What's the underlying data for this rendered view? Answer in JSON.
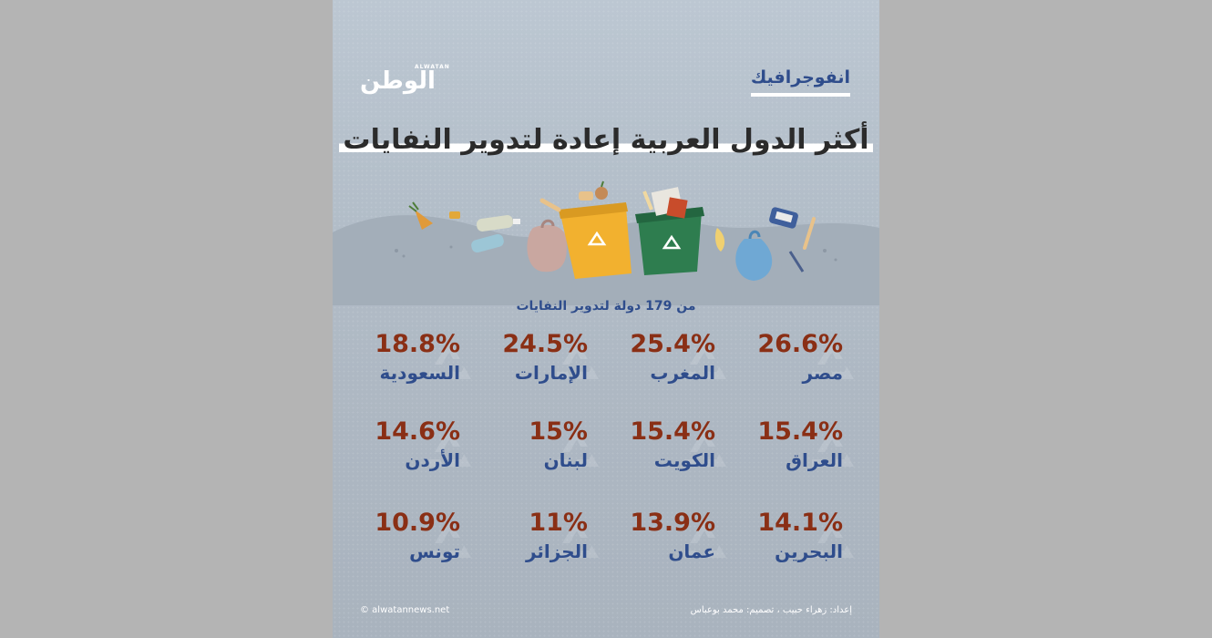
{
  "header": {
    "logo_ar": "الوطن",
    "logo_en": "ALWATAN",
    "section_tag": "انفوجرافيك"
  },
  "title": "أكثر الدول العربية إعادة لتدوير النفايات",
  "subtitle": "من 179 دولة لتدوير النفايات",
  "items": [
    {
      "country": "مصر",
      "value": "26.6%"
    },
    {
      "country": "المغرب",
      "value": "25.4%"
    },
    {
      "country": "الإمارات",
      "value": "24.5%"
    },
    {
      "country": "السعودية",
      "value": "18.8%"
    },
    {
      "country": "العراق",
      "value": "15.4%"
    },
    {
      "country": "الكويت",
      "value": "15.4%"
    },
    {
      "country": "لبنان",
      "value": "15%"
    },
    {
      "country": "الأردن",
      "value": "14.6%"
    },
    {
      "country": "البحرين",
      "value": "14.1%"
    },
    {
      "country": "عمان",
      "value": "13.9%"
    },
    {
      "country": "الجزائر",
      "value": "11%"
    },
    {
      "country": "تونس",
      "value": "10.9%"
    }
  ],
  "footer": {
    "credits": "إعداد: زهراء حبيب ، تصميم: محمد بوعباس",
    "website": "© alwatannews.net"
  },
  "colors": {
    "value": "#8a2f15",
    "country": "#2f4d8c",
    "yellow_bin": "#f2b12f",
    "green_bin": "#2e7d4f"
  }
}
